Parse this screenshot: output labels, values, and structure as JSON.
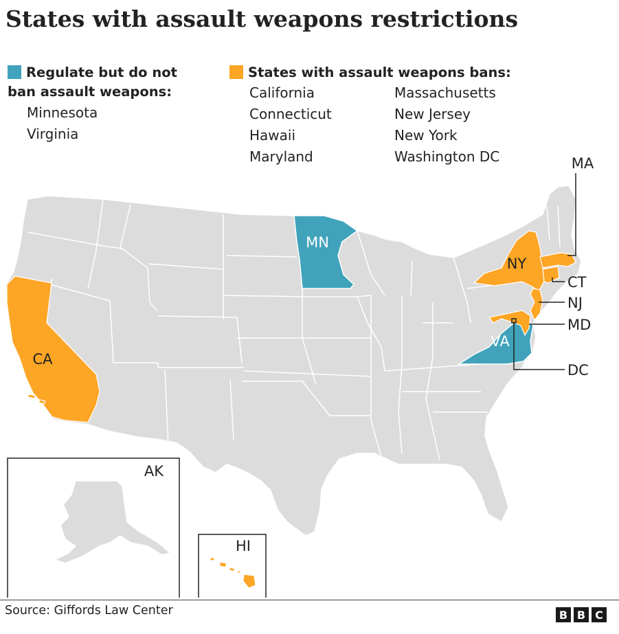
{
  "title": "States with assault weapons restrictions",
  "colors": {
    "regulate": "#40a3bb",
    "ban": "#fda525",
    "state_fill": "#dcdcdc",
    "state_border": "#ffffff",
    "leader": "#222222"
  },
  "legend": {
    "regulate": {
      "heading_line1": "Regulate but do not",
      "heading_line2": "ban assault weapons:",
      "states": [
        "Minnesota",
        "Virginia"
      ]
    },
    "ban": {
      "heading": "States with assault weapons bans:",
      "states_col1": [
        "California",
        "Connecticut",
        "Hawaii",
        "Maryland"
      ],
      "states_col2": [
        "Massachusetts",
        "New Jersey",
        "New York",
        "Washington DC"
      ]
    }
  },
  "map": {
    "labels": {
      "MN": "MN",
      "VA": "VA",
      "CA": "CA",
      "NY": "NY",
      "MA": "MA",
      "CT": "CT",
      "NJ": "NJ",
      "MD": "MD",
      "DC": "DC",
      "AK": "AK",
      "HI": "HI"
    }
  },
  "source": "Source: Giffords Law Center",
  "logo": [
    "B",
    "B",
    "C"
  ]
}
